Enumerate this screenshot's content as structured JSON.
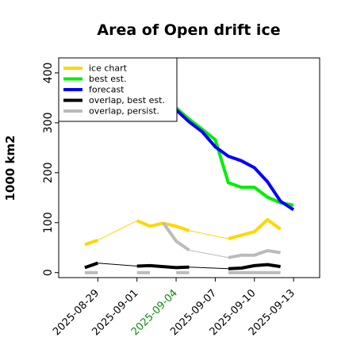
{
  "chart_data": {
    "type": "line",
    "title": "Area of Open drift ice",
    "ylabel": "1000 km2",
    "xlabel": "",
    "xlim": [
      "2025-08-26",
      "2025-09-15"
    ],
    "ylim": [
      -10,
      430
    ],
    "yticks": [
      0,
      100,
      200,
      300,
      400
    ],
    "xticks": [
      "2025-08-29",
      "2025-09-01",
      "2025-09-04",
      "2025-09-07",
      "2025-09-10",
      "2025-09-13"
    ],
    "highlight_tick": "2025-09-04",
    "highlight_color": "#138a13",
    "grid": false,
    "legend_position": "upper left",
    "series": [
      {
        "name": "ice chart",
        "color": "#ffd700",
        "segments": [
          {
            "x": [
              "2025-08-28",
              "2025-08-29"
            ],
            "y": [
              56,
              65
            ],
            "style": "thick"
          },
          {
            "x": [
              "2025-08-29",
              "2025-09-01"
            ],
            "y": [
              65,
              104
            ],
            "style": "thin"
          },
          {
            "x": [
              "2025-09-01",
              "2025-09-02",
              "2025-09-03",
              "2025-09-04",
              "2025-09-05"
            ],
            "y": [
              104,
              93,
              99,
              93,
              84
            ],
            "style": "thick"
          },
          {
            "x": [
              "2025-09-05",
              "2025-09-08"
            ],
            "y": [
              84,
              68
            ],
            "style": "thin"
          },
          {
            "x": [
              "2025-09-08",
              "2025-09-09",
              "2025-09-10",
              "2025-09-11",
              "2025-09-12"
            ],
            "y": [
              68,
              75,
              82,
              106,
              87
            ],
            "style": "thick"
          }
        ]
      },
      {
        "name": "best est.",
        "color": "#00ee00",
        "segments": [
          {
            "x": [
              "2025-09-04",
              "2025-09-05",
              "2025-09-06",
              "2025-09-07",
              "2025-09-08",
              "2025-09-09",
              "2025-09-10",
              "2025-09-11",
              "2025-09-12",
              "2025-09-13"
            ],
            "y": [
              330,
              307,
              287,
              266,
              180,
              171,
              171,
              151,
              140,
              135
            ],
            "style": "thick"
          }
        ]
      },
      {
        "name": "forecast",
        "color": "#0000ff",
        "segments": [
          {
            "x": [
              "2025-09-04",
              "2025-09-05",
              "2025-09-06",
              "2025-09-07",
              "2025-09-08",
              "2025-09-09",
              "2025-09-10",
              "2025-09-11",
              "2025-09-12",
              "2025-09-13"
            ],
            "y": [
              326,
              302,
              282,
              252,
              233,
              224,
              210,
              182,
              143,
              126
            ],
            "style": "thick"
          }
        ]
      },
      {
        "name": "overlap, best est.",
        "color": "#000000",
        "segments": [
          {
            "x": [
              "2025-08-28",
              "2025-08-29"
            ],
            "y": [
              10,
              19
            ],
            "style": "thick"
          },
          {
            "x": [
              "2025-08-29",
              "2025-09-01"
            ],
            "y": [
              19,
              13
            ],
            "style": "thin"
          },
          {
            "x": [
              "2025-09-01",
              "2025-09-02",
              "2025-09-03",
              "2025-09-04",
              "2025-09-05"
            ],
            "y": [
              13,
              14,
              12,
              10,
              11
            ],
            "style": "thick"
          },
          {
            "x": [
              "2025-09-05",
              "2025-09-08"
            ],
            "y": [
              11,
              8
            ],
            "style": "thin"
          },
          {
            "x": [
              "2025-09-08",
              "2025-09-09",
              "2025-09-10",
              "2025-09-11",
              "2025-09-12"
            ],
            "y": [
              8,
              9,
              14,
              16,
              12
            ],
            "style": "thick"
          }
        ]
      },
      {
        "name": "overlap, persist.",
        "color": "#bbbbbb",
        "segments": [
          {
            "x": [
              "2025-08-28",
              "2025-08-29"
            ],
            "y": [
              0,
              0
            ],
            "style": "thick"
          },
          {
            "x": [
              "2025-09-01",
              "2025-09-02"
            ],
            "y": [
              0,
              0
            ],
            "style": "thick"
          },
          {
            "x": [
              "2025-09-03",
              "2025-09-04",
              "2025-09-05"
            ],
            "y": [
              100,
              63,
              45
            ],
            "style": "thick"
          },
          {
            "x": [
              "2025-09-05",
              "2025-09-08"
            ],
            "y": [
              45,
              30
            ],
            "style": "thin"
          },
          {
            "x": [
              "2025-09-08",
              "2025-09-09",
              "2025-09-10",
              "2025-09-11",
              "2025-09-12"
            ],
            "y": [
              30,
              35,
              35,
              44,
              40
            ],
            "style": "thick"
          },
          {
            "x": [
              "2025-09-04",
              "2025-09-05"
            ],
            "y": [
              0,
              0
            ],
            "style": "thick"
          },
          {
            "x": [
              "2025-09-08",
              "2025-09-12"
            ],
            "y": [
              0,
              0
            ],
            "style": "thick"
          }
        ]
      }
    ]
  }
}
